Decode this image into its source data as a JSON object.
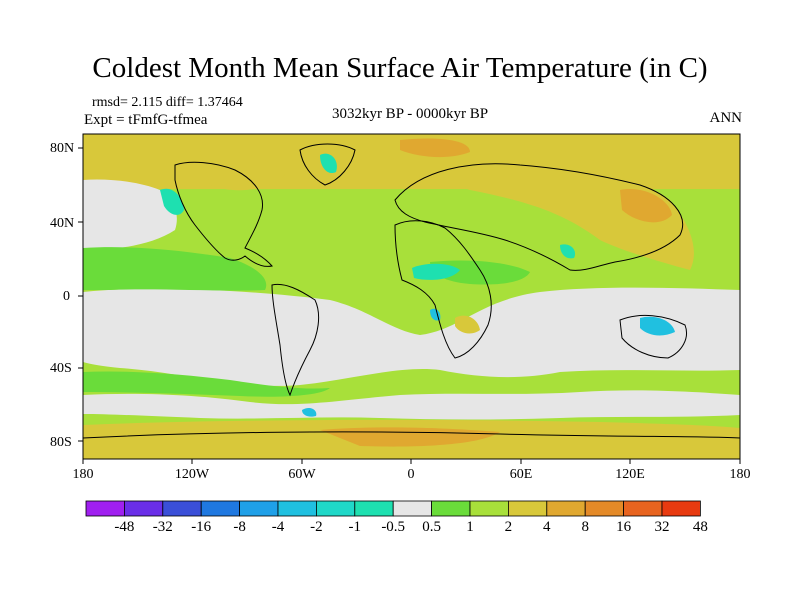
{
  "title": "Coldest Month Mean Surface Air Temperature (in C)",
  "stats": "rmsd= 2.115 diff= 1.37464",
  "experiment": "Expt = tFmfG-tfmea",
  "period": "3032kyr BP - 0000kyr BP",
  "season": "ANN",
  "lat_labels": [
    "80N",
    "40N",
    "0",
    "40S",
    "80S"
  ],
  "lon_labels": [
    "180",
    "120W",
    "60W",
    "0",
    "60E",
    "120E",
    "180"
  ],
  "colorbar": {
    "labels": [
      "-48",
      "-32",
      "-16",
      "-8",
      "-4",
      "-2",
      "-1",
      "-0.5",
      "0.5",
      "1",
      "2",
      "4",
      "8",
      "16",
      "32",
      "48"
    ],
    "colors": [
      "#a020f0",
      "#6a2ee8",
      "#3a4fd8",
      "#1f78e0",
      "#1fa0e8",
      "#20c0e0",
      "#20d8c8",
      "#1ee0b0",
      "#e6e6e6",
      "#6adc3a",
      "#a8e03a",
      "#d8c83a",
      "#e0a830",
      "#e48a28",
      "#e86420",
      "#e83a10"
    ]
  },
  "colors": {
    "ocean_neutral": "#e6e6e6",
    "warm_light": "#6adc3a",
    "warm_mid": "#a8e03a",
    "warm_strong": "#d8c83a",
    "warm_stronger": "#e0a830",
    "cool_light": "#1ee0b0"
  }
}
